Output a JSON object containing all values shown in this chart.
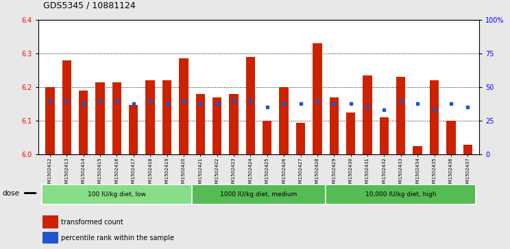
{
  "title": "GDS5345 / 10881124",
  "samples": [
    "GSM1502412",
    "GSM1502413",
    "GSM1502414",
    "GSM1502415",
    "GSM1502416",
    "GSM1502417",
    "GSM1502418",
    "GSM1502419",
    "GSM1502420",
    "GSM1502421",
    "GSM1502422",
    "GSM1502423",
    "GSM1502424",
    "GSM1502425",
    "GSM1502426",
    "GSM1502427",
    "GSM1502428",
    "GSM1502429",
    "GSM1502430",
    "GSM1502431",
    "GSM1502432",
    "GSM1502433",
    "GSM1502434",
    "GSM1502435",
    "GSM1502436",
    "GSM1502437"
  ],
  "bar_heights": [
    6.2,
    6.28,
    6.19,
    6.215,
    6.215,
    6.148,
    6.22,
    6.22,
    6.285,
    6.18,
    6.17,
    6.18,
    6.29,
    6.1,
    6.2,
    6.095,
    6.33,
    6.17,
    6.125,
    6.235,
    6.11,
    6.23,
    6.025,
    6.22,
    6.1,
    6.028
  ],
  "percentile_ranks": [
    40,
    40,
    38,
    40,
    40,
    38,
    40,
    38,
    40,
    38,
    38,
    40,
    40,
    35,
    38,
    38,
    40,
    38,
    38,
    35,
    33,
    40,
    38,
    33,
    38,
    35
  ],
  "bar_color": "#cc2200",
  "dot_color": "#2255cc",
  "ylim_left": [
    6.0,
    6.4
  ],
  "ylim_right": [
    0,
    100
  ],
  "yticks_left": [
    6.0,
    6.1,
    6.2,
    6.3,
    6.4
  ],
  "yticks_right": [
    0,
    25,
    50,
    75,
    100
  ],
  "ytick_labels_right": [
    "0",
    "25",
    "50",
    "75",
    "100%"
  ],
  "grid_lines": [
    6.1,
    6.2,
    6.3
  ],
  "group_boundaries": [
    0,
    9,
    17,
    26
  ],
  "group_labels": [
    "100 IU/kg diet, low",
    "1000 IU/kg diet, medium",
    "10,000 IU/kg diet, high"
  ],
  "group_colors": [
    "#88dd88",
    "#55bb55",
    "#55bb55"
  ],
  "dose_label": "dose",
  "legend_items": [
    {
      "label": "transformed count",
      "color": "#cc2200"
    },
    {
      "label": "percentile rank within the sample",
      "color": "#2255cc"
    }
  ],
  "fig_bg": "#e8e8e8",
  "plot_bg": "#ffffff",
  "title_fontsize": 9
}
